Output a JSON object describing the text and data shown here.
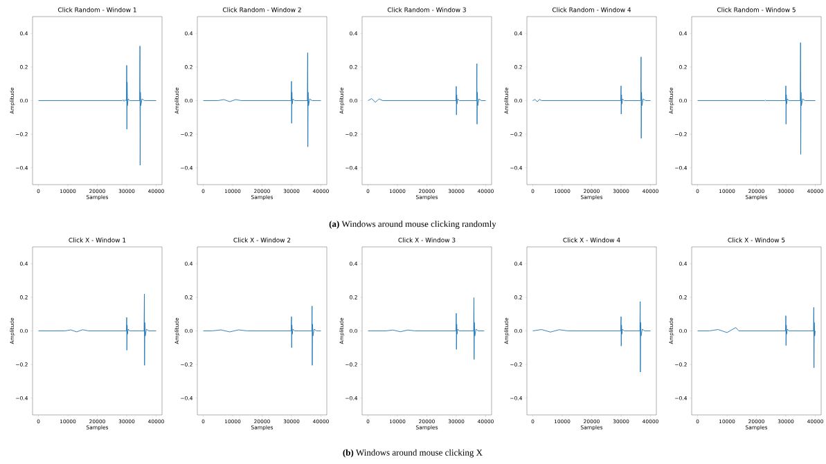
{
  "chart_data": [
    {
      "type": "line",
      "title": "Click Random - Window 1",
      "xlabel": "Samples",
      "ylabel": "Amplitude",
      "color": "#1f77b4",
      "xlim": [
        -2000,
        42000
      ],
      "ylim": [
        -0.5,
        0.5
      ],
      "xticks": [
        0,
        10000,
        20000,
        30000,
        40000
      ],
      "yticks": [
        {
          "value": -0.4,
          "label": "−0.4"
        },
        {
          "value": -0.2,
          "label": "−0.2"
        },
        {
          "value": 0,
          "label": "0.0"
        },
        {
          "value": 0.2,
          "label": "0.2"
        },
        {
          "value": 0.4,
          "label": "0.4"
        }
      ],
      "x": [
        0,
        28500,
        28800,
        29100,
        29400,
        29800,
        29900,
        30000,
        30060,
        30150,
        30250,
        30500,
        31000,
        34400,
        34500,
        34560,
        34650,
        34800,
        35200,
        36000,
        40000
      ],
      "values": [
        0,
        0,
        0.005,
        -0.004,
        0.004,
        0,
        0,
        0.21,
        -0.17,
        0.11,
        -0.03,
        0.01,
        0,
        0,
        0.325,
        -0.385,
        0.05,
        -0.03,
        0.01,
        0,
        0
      ]
    },
    {
      "type": "line",
      "title": "Click Random - Window 2",
      "xlabel": "Samples",
      "ylabel": "Amplitude",
      "color": "#1f77b4",
      "xlim": [
        -2000,
        42000
      ],
      "ylim": [
        -0.5,
        0.5
      ],
      "xticks": [
        0,
        10000,
        20000,
        30000,
        40000
      ],
      "yticks": [
        {
          "value": -0.4,
          "label": "−0.4"
        },
        {
          "value": -0.2,
          "label": "−0.2"
        },
        {
          "value": 0,
          "label": "0.0"
        },
        {
          "value": 0.2,
          "label": "0.2"
        },
        {
          "value": 0.4,
          "label": "0.4"
        }
      ],
      "x": [
        0,
        5000,
        7000,
        9000,
        11000,
        13000,
        29900,
        30000,
        30060,
        30150,
        30250,
        30500,
        31000,
        35400,
        35500,
        35560,
        35650,
        35800,
        36200,
        37000,
        40000
      ],
      "values": [
        0,
        0,
        0.006,
        -0.006,
        0.006,
        0,
        0,
        0.115,
        -0.135,
        0.05,
        -0.02,
        0.01,
        0,
        0,
        0.285,
        -0.275,
        0.05,
        -0.03,
        0.01,
        0,
        0
      ]
    },
    {
      "type": "line",
      "title": "Click Random - Window 3",
      "xlabel": "Samples",
      "ylabel": "Amplitude",
      "color": "#1f77b4",
      "xlim": [
        -2000,
        42000
      ],
      "ylim": [
        -0.5,
        0.5
      ],
      "xticks": [
        0,
        10000,
        20000,
        30000,
        40000
      ],
      "yticks": [
        {
          "value": -0.4,
          "label": "−0.4"
        },
        {
          "value": -0.2,
          "label": "−0.2"
        },
        {
          "value": 0,
          "label": "0.0"
        },
        {
          "value": 0.2,
          "label": "0.2"
        },
        {
          "value": 0.4,
          "label": "0.4"
        }
      ],
      "x": [
        0,
        1250,
        2500,
        3750,
        5000,
        29900,
        30000,
        30060,
        30150,
        30250,
        30500,
        31000,
        36900,
        37000,
        37060,
        37150,
        37300,
        37700,
        38500,
        40000
      ],
      "values": [
        0,
        0.012,
        -0.01,
        0.01,
        0,
        0,
        0.085,
        -0.085,
        0.035,
        -0.02,
        0.01,
        0,
        0,
        0.22,
        -0.14,
        0.05,
        -0.03,
        0.01,
        0,
        0
      ],
      "annotations": [
        "**(a)** Windows around mouse clicking randomly"
      ]
    },
    {
      "type": "line",
      "title": "Click Random - Window 4",
      "xlabel": "Samples",
      "ylabel": "Amplitude",
      "color": "#1f77b4",
      "xlim": [
        -2000,
        42000
      ],
      "ylim": [
        -0.5,
        0.5
      ],
      "xticks": [
        0,
        10000,
        20000,
        30000,
        40000
      ],
      "yticks": [
        {
          "value": -0.4,
          "label": "−0.4"
        },
        {
          "value": -0.2,
          "label": "−0.2"
        },
        {
          "value": 0,
          "label": "0.0"
        },
        {
          "value": 0.2,
          "label": "0.2"
        },
        {
          "value": 0.4,
          "label": "0.4"
        }
      ],
      "x": [
        0,
        750,
        1500,
        2250,
        3000,
        29900,
        30000,
        30060,
        30150,
        30250,
        30500,
        31000,
        36700,
        36800,
        36860,
        36950,
        37100,
        37500,
        38300,
        40000
      ],
      "values": [
        0,
        0.007,
        -0.007,
        0.007,
        0,
        0,
        0.088,
        -0.08,
        0.035,
        -0.02,
        0.01,
        0,
        0,
        0.26,
        -0.225,
        0.05,
        -0.03,
        0.01,
        0,
        0
      ]
    },
    {
      "type": "line",
      "title": "Click Random - Window 5",
      "xlabel": "Samples",
      "ylabel": "Amplitude",
      "color": "#1f77b4",
      "xlim": [
        -2000,
        42000
      ],
      "ylim": [
        -0.5,
        0.5
      ],
      "xticks": [
        0,
        10000,
        20000,
        30000,
        40000
      ],
      "yticks": [
        {
          "value": -0.4,
          "label": "−0.4"
        },
        {
          "value": -0.2,
          "label": "−0.2"
        },
        {
          "value": 0,
          "label": "0.0"
        },
        {
          "value": 0.2,
          "label": "0.2"
        },
        {
          "value": 0.4,
          "label": "0.4"
        }
      ],
      "x": [
        0,
        22800,
        23000,
        23200,
        29900,
        30000,
        30060,
        30150,
        30250,
        30500,
        31000,
        34900,
        35000,
        35060,
        35150,
        35300,
        35700,
        36500,
        40000
      ],
      "values": [
        0,
        0,
        0.003,
        0,
        0,
        0.088,
        -0.14,
        0.035,
        -0.02,
        0.01,
        0,
        0,
        0.345,
        -0.32,
        0.05,
        -0.03,
        0.01,
        0,
        0
      ]
    },
    {
      "type": "line",
      "title": "Click X - Window 1",
      "xlabel": "Samples",
      "ylabel": "Amplitude",
      "color": "#1f77b4",
      "xlim": [
        -2000,
        42000
      ],
      "ylim": [
        -0.5,
        0.5
      ],
      "xticks": [
        0,
        10000,
        20000,
        30000,
        40000
      ],
      "yticks": [
        {
          "value": -0.4,
          "label": "−0.4"
        },
        {
          "value": -0.2,
          "label": "−0.2"
        },
        {
          "value": 0,
          "label": "0.0"
        },
        {
          "value": 0.2,
          "label": "0.2"
        },
        {
          "value": 0.4,
          "label": "0.4"
        }
      ],
      "x": [
        0,
        9000,
        11000,
        13000,
        15000,
        17000,
        29900,
        30000,
        30060,
        30150,
        30250,
        30500,
        31000,
        35900,
        36000,
        36060,
        36150,
        36300,
        36700,
        37500,
        40000
      ],
      "values": [
        0,
        0,
        0.006,
        -0.006,
        0.007,
        0,
        0,
        0.08,
        -0.115,
        0.035,
        -0.02,
        0.01,
        0,
        0,
        0.22,
        -0.205,
        0.05,
        -0.03,
        0.01,
        0,
        0
      ]
    },
    {
      "type": "line",
      "title": "Click X - Window 2",
      "xlabel": "Samples",
      "ylabel": "Amplitude",
      "color": "#1f77b4",
      "xlim": [
        -2000,
        42000
      ],
      "ylim": [
        -0.5,
        0.5
      ],
      "xticks": [
        0,
        10000,
        20000,
        30000,
        40000
      ],
      "yticks": [
        {
          "value": -0.4,
          "label": "−0.4"
        },
        {
          "value": -0.2,
          "label": "−0.2"
        },
        {
          "value": 0,
          "label": "0.0"
        },
        {
          "value": 0.2,
          "label": "0.2"
        },
        {
          "value": 0.4,
          "label": "0.4"
        }
      ],
      "x": [
        0,
        3000,
        6000,
        9000,
        12000,
        15000,
        29900,
        30000,
        30060,
        30150,
        30250,
        30500,
        31000,
        36900,
        37000,
        37060,
        37150,
        37300,
        37700,
        38500,
        40000
      ],
      "values": [
        0,
        0,
        0.006,
        -0.006,
        0.006,
        0,
        0,
        0.085,
        -0.1,
        0.035,
        -0.02,
        0.01,
        0,
        0,
        0.148,
        -0.205,
        0.04,
        -0.03,
        0.01,
        0,
        0
      ]
    },
    {
      "type": "line",
      "title": "Click X - Window 3",
      "xlabel": "Samples",
      "ylabel": "Amplitude",
      "color": "#1f77b4",
      "xlim": [
        -2000,
        42000
      ],
      "ylim": [
        -0.5,
        0.5
      ],
      "xticks": [
        0,
        10000,
        20000,
        30000,
        40000
      ],
      "yticks": [
        {
          "value": -0.4,
          "label": "−0.4"
        },
        {
          "value": -0.2,
          "label": "−0.2"
        },
        {
          "value": 0,
          "label": "0.0"
        },
        {
          "value": 0.2,
          "label": "0.2"
        },
        {
          "value": 0.4,
          "label": "0.4"
        }
      ],
      "x": [
        0,
        6000,
        8500,
        11000,
        13500,
        16000,
        29900,
        30000,
        30060,
        30150,
        30250,
        30500,
        31000,
        35900,
        36000,
        36060,
        36150,
        36300,
        36700,
        37500,
        39500
      ],
      "values": [
        0,
        0,
        0.005,
        -0.005,
        0.005,
        0,
        0,
        0.105,
        -0.11,
        0.04,
        -0.02,
        0.01,
        0,
        0,
        0.198,
        -0.17,
        0.05,
        -0.03,
        0.01,
        0,
        0
      ],
      "annotations": [
        "**(b)** Windows around mouse clicking X"
      ]
    },
    {
      "type": "line",
      "title": "Click X - Window 4",
      "xlabel": "Samples",
      "ylabel": "Amplitude",
      "color": "#1f77b4",
      "xlim": [
        -2000,
        42000
      ],
      "ylim": [
        -0.5,
        0.5
      ],
      "xticks": [
        0,
        10000,
        20000,
        30000,
        40000
      ],
      "yticks": [
        {
          "value": -0.4,
          "label": "−0.4"
        },
        {
          "value": -0.2,
          "label": "−0.2"
        },
        {
          "value": 0,
          "label": "0.0"
        },
        {
          "value": 0.2,
          "label": "0.2"
        },
        {
          "value": 0.4,
          "label": "0.4"
        }
      ],
      "x": [
        0,
        3000,
        6000,
        9000,
        12000,
        29900,
        30000,
        30060,
        30150,
        30250,
        30500,
        31000,
        36400,
        36500,
        36560,
        36650,
        36800,
        37200,
        38000,
        40000
      ],
      "values": [
        0,
        0.008,
        -0.007,
        0.007,
        0,
        0,
        0.085,
        -0.09,
        0.035,
        -0.02,
        0.01,
        0,
        0,
        0.175,
        -0.245,
        0.05,
        -0.03,
        0.01,
        0,
        0
      ]
    },
    {
      "type": "line",
      "title": "Click X - Window 5",
      "xlabel": "Samples",
      "ylabel": "Amplitude",
      "color": "#1f77b4",
      "xlim": [
        -2000,
        42000
      ],
      "ylim": [
        -0.5,
        0.5
      ],
      "xticks": [
        0,
        10000,
        20000,
        30000,
        40000
      ],
      "yticks": [
        {
          "value": -0.4,
          "label": "−0.4"
        },
        {
          "value": -0.2,
          "label": "−0.2"
        },
        {
          "value": 0,
          "label": "0.0"
        },
        {
          "value": 0.2,
          "label": "0.2"
        },
        {
          "value": 0.4,
          "label": "0.4"
        }
      ],
      "x": [
        0,
        4000,
        7000,
        10000,
        12000,
        13000,
        14000,
        29900,
        30000,
        30060,
        30150,
        30250,
        30500,
        31000,
        39400,
        39500,
        39560,
        39650,
        39800,
        40000
      ],
      "values": [
        0,
        0,
        0.008,
        -0.01,
        0.01,
        0.02,
        0,
        0,
        0.09,
        -0.087,
        0.035,
        -0.02,
        0.01,
        0,
        0,
        0.14,
        -0.22,
        0.05,
        -0.03,
        0
      ]
    }
  ]
}
